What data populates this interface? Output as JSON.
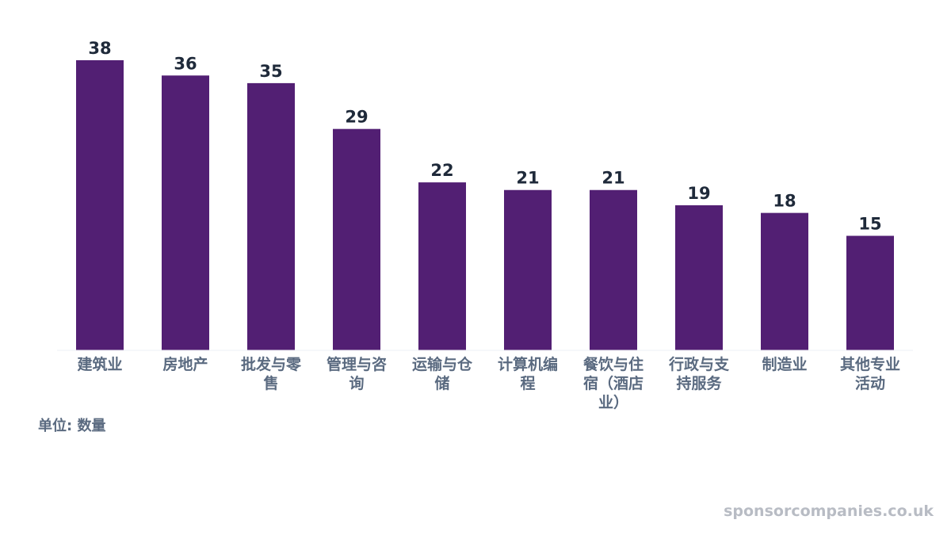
{
  "chart_data": {
    "type": "bar",
    "categories": [
      [
        "建筑业"
      ],
      [
        "房地产"
      ],
      [
        "批发与零",
        "售"
      ],
      [
        "管理与咨",
        "询"
      ],
      [
        "运输与仓",
        "储"
      ],
      [
        "计算机编",
        "程"
      ],
      [
        "餐饮与住",
        "宿（酒店",
        "业）"
      ],
      [
        "行政与支",
        "持服务"
      ],
      [
        "制造业"
      ],
      [
        "其他专业",
        "活动"
      ]
    ],
    "values": [
      38,
      36,
      35,
      29,
      22,
      21,
      21,
      19,
      18,
      15
    ],
    "ylim": [
      0,
      38
    ],
    "grid": false,
    "data_labels": true
  },
  "colors": {
    "bar": "#521f73",
    "value_text": "#1f2a3a",
    "category_text": "#5a6a80",
    "baseline": "#eef0f4",
    "watermark": "#b8bcc4"
  },
  "unit_note": "单位: 数量",
  "watermark": "sponsorcompanies.co.uk"
}
